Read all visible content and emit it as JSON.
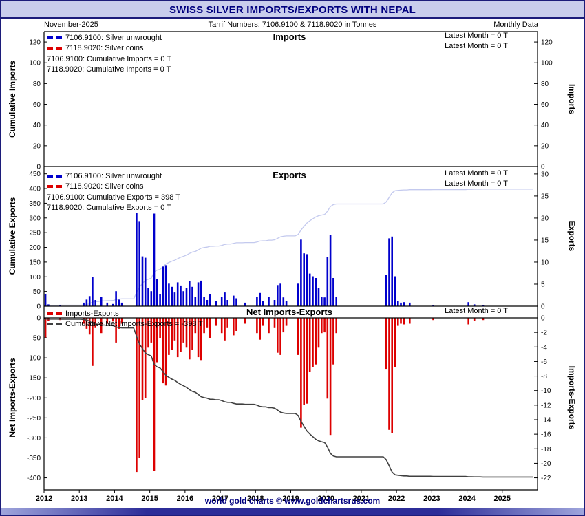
{
  "header": {
    "title": "SWISS SILVER IMPORTS/EXPORTS WITH NEPAL",
    "date_label": "November-2025",
    "tariff_label": "Tarrif Numbers: 7106.9100 & 7118.9020 in Tonnes",
    "period_label": "Monthly Data"
  },
  "footer": {
    "credit": "world gold charts © www.goldchartsrus.com"
  },
  "colors": {
    "unwrought": "#0000cc",
    "coins": "#dd0000",
    "cumulative_exports_line": "#c3c9ee",
    "cumulative_net_line": "#404040",
    "header_bg": "#c9cdec",
    "header_text": "#00007e",
    "axis": "#000000"
  },
  "x_axis": {
    "start_year": 2012,
    "end_year": 2026,
    "year_labels": [
      2012,
      2013,
      2014,
      2015,
      2016,
      2017,
      2018,
      2019,
      2020,
      2021,
      2022,
      2023,
      2024,
      2025
    ]
  },
  "chart_data": [
    {
      "id": "imports",
      "type": "bar",
      "title": "Imports",
      "units": "Tonnes",
      "left_axis": {
        "label": "Cumulative Imports",
        "ticks": [
          0,
          20,
          40,
          60,
          80,
          100,
          120
        ],
        "max": 130
      },
      "right_axis": {
        "label": "Imports",
        "ticks": [
          0,
          20,
          40,
          60,
          80,
          100,
          120
        ],
        "max": 130
      },
      "legend": [
        {
          "label": "7106.9100: Silver unwrought",
          "color": "unwrought"
        },
        {
          "label": "7118.9020: Silver coins",
          "color": "coins"
        }
      ],
      "annotations": [
        "7106.9100: Cumulative Imports = 0 T",
        "7118.9020: Cumulative Imports = 0 T"
      ],
      "latest": [
        "Latest Month = 0 T",
        "Latest Month = 0 T"
      ],
      "bar_color": "unwrought",
      "monthly": [],
      "cumulative_total": 0
    },
    {
      "id": "exports",
      "type": "bar+line",
      "title": "Exports",
      "units": "Tonnes",
      "left_axis": {
        "label": "Cumulative Exports",
        "ticks": [
          0,
          50,
          100,
          150,
          200,
          250,
          300,
          350,
          400,
          450
        ],
        "max": 475
      },
      "right_axis": {
        "label": "Exports",
        "ticks": [
          0,
          5,
          10,
          15,
          20,
          25,
          30
        ],
        "max": 31.7
      },
      "legend": [
        {
          "label": "7106.9100: Silver unwrought",
          "color": "unwrought"
        },
        {
          "label": "7118.9020: Silver coins",
          "color": "coins"
        }
      ],
      "annotations": [
        "7106.9100: Cumulative Exports = 398 T",
        "7118.9020: Cumulative Exports = 0 T"
      ],
      "latest": [
        "Latest Month = 0 T",
        "Latest Month = 0 T"
      ],
      "bar_color": "unwrought",
      "line_color": "cumulative_exports_line",
      "cumulative_total": 398,
      "monthly": [
        [
          "2012-01",
          2.7
        ],
        [
          "2012-02",
          0.4
        ],
        [
          "2012-06",
          0.3
        ],
        [
          "2013-02",
          0.8
        ],
        [
          "2013-03",
          1.5
        ],
        [
          "2013-04",
          2.3
        ],
        [
          "2013-05",
          6.6
        ],
        [
          "2013-06",
          1.4
        ],
        [
          "2013-08",
          2.1
        ],
        [
          "2013-10",
          0.8
        ],
        [
          "2013-12",
          0.5
        ],
        [
          "2014-01",
          3.4
        ],
        [
          "2014-02",
          1.5
        ],
        [
          "2014-03",
          0.8
        ],
        [
          "2014-08",
          21.2
        ],
        [
          "2014-09",
          19.3
        ],
        [
          "2014-10",
          11.3
        ],
        [
          "2014-11",
          11.0
        ],
        [
          "2014-12",
          4.1
        ],
        [
          "2015-01",
          3.4
        ],
        [
          "2015-02",
          21.0
        ],
        [
          "2015-03",
          6.1
        ],
        [
          "2015-04",
          2.8
        ],
        [
          "2015-05",
          9.0
        ],
        [
          "2015-06",
          9.3
        ],
        [
          "2015-07",
          5.1
        ],
        [
          "2015-08",
          4.4
        ],
        [
          "2015-09",
          3.1
        ],
        [
          "2015-10",
          5.4
        ],
        [
          "2015-11",
          4.7
        ],
        [
          "2015-12",
          3.4
        ],
        [
          "2016-01",
          4.1
        ],
        [
          "2016-02",
          5.7
        ],
        [
          "2016-03",
          4.4
        ],
        [
          "2016-04",
          2.1
        ],
        [
          "2016-05",
          5.4
        ],
        [
          "2016-06",
          5.8
        ],
        [
          "2016-07",
          2.1
        ],
        [
          "2016-08",
          1.4
        ],
        [
          "2016-09",
          2.8
        ],
        [
          "2016-11",
          1.1
        ],
        [
          "2017-01",
          2.1
        ],
        [
          "2017-02",
          3.1
        ],
        [
          "2017-03",
          1.4
        ],
        [
          "2017-05",
          2.4
        ],
        [
          "2017-06",
          1.8
        ],
        [
          "2017-09",
          0.8
        ],
        [
          "2018-01",
          2.1
        ],
        [
          "2018-02",
          3.0
        ],
        [
          "2018-03",
          1.1
        ],
        [
          "2018-05",
          2.1
        ],
        [
          "2018-07",
          1.4
        ],
        [
          "2018-08",
          4.8
        ],
        [
          "2018-09",
          5.1
        ],
        [
          "2018-10",
          2.0
        ],
        [
          "2018-11",
          1.1
        ],
        [
          "2019-03",
          5.1
        ],
        [
          "2019-04",
          15.1
        ],
        [
          "2019-05",
          12.0
        ],
        [
          "2019-06",
          11.8
        ],
        [
          "2019-07",
          7.4
        ],
        [
          "2019-08",
          6.8
        ],
        [
          "2019-09",
          6.4
        ],
        [
          "2019-10",
          4.1
        ],
        [
          "2019-11",
          2.1
        ],
        [
          "2019-12",
          2.0
        ],
        [
          "2020-01",
          11.1
        ],
        [
          "2020-02",
          16.1
        ],
        [
          "2020-03",
          6.4
        ],
        [
          "2020-04",
          2.1
        ],
        [
          "2021-09",
          7.1
        ],
        [
          "2021-10",
          15.4
        ],
        [
          "2021-11",
          15.8
        ],
        [
          "2021-12",
          6.8
        ],
        [
          "2022-01",
          1.1
        ],
        [
          "2022-02",
          0.8
        ],
        [
          "2022-03",
          0.9
        ],
        [
          "2022-05",
          0.8
        ],
        [
          "2023-01",
          0.3
        ],
        [
          "2024-01",
          0.9
        ],
        [
          "2024-03",
          0.4
        ],
        [
          "2024-06",
          0.3
        ]
      ]
    },
    {
      "id": "net",
      "type": "bar+line",
      "title": "Net Imports-Exports",
      "units": "Tonnes",
      "left_axis": {
        "label": "Net Imports-Exports",
        "ticks": [
          0,
          -50,
          -100,
          -150,
          -200,
          -250,
          -300,
          -350,
          -400
        ],
        "min": -430
      },
      "right_axis": {
        "label": "Imports-Exports",
        "ticks": [
          0,
          -2,
          -4,
          -6,
          -8,
          -10,
          -12,
          -14,
          -16,
          -18,
          -20,
          -22
        ],
        "min": -23.65
      },
      "legend": [
        {
          "label": "Imports-Exports",
          "color": "coins"
        },
        {
          "label": "Cumulative Net Imports-Exports = -398 T",
          "color": "cumulative_net_line"
        }
      ],
      "latest": [
        "Latest Month = 0 T"
      ],
      "bar_color": "coins",
      "line_color": "cumulative_net_line",
      "cumulative_total": -398,
      "monthly": [
        [
          "2012-01",
          -2.7
        ],
        [
          "2012-02",
          -0.4
        ],
        [
          "2012-06",
          -0.3
        ],
        [
          "2013-02",
          -0.8
        ],
        [
          "2013-03",
          -1.5
        ],
        [
          "2013-04",
          -2.3
        ],
        [
          "2013-05",
          -6.6
        ],
        [
          "2013-06",
          -1.4
        ],
        [
          "2013-08",
          -2.1
        ],
        [
          "2013-10",
          -0.8
        ],
        [
          "2013-12",
          -0.5
        ],
        [
          "2014-01",
          -3.4
        ],
        [
          "2014-02",
          -1.5
        ],
        [
          "2014-03",
          -0.8
        ],
        [
          "2014-08",
          -21.2
        ],
        [
          "2014-09",
          -19.3
        ],
        [
          "2014-10",
          -11.3
        ],
        [
          "2014-11",
          -11.0
        ],
        [
          "2014-12",
          -4.1
        ],
        [
          "2015-01",
          -3.4
        ],
        [
          "2015-02",
          -21.0
        ],
        [
          "2015-03",
          -6.1
        ],
        [
          "2015-04",
          -2.8
        ],
        [
          "2015-05",
          -9.0
        ],
        [
          "2015-06",
          -9.3
        ],
        [
          "2015-07",
          -5.1
        ],
        [
          "2015-08",
          -4.4
        ],
        [
          "2015-09",
          -3.1
        ],
        [
          "2015-10",
          -5.4
        ],
        [
          "2015-11",
          -4.7
        ],
        [
          "2015-12",
          -3.4
        ],
        [
          "2016-01",
          -4.1
        ],
        [
          "2016-02",
          -5.7
        ],
        [
          "2016-03",
          -4.4
        ],
        [
          "2016-04",
          -2.1
        ],
        [
          "2016-05",
          -5.4
        ],
        [
          "2016-06",
          -5.8
        ],
        [
          "2016-07",
          -2.1
        ],
        [
          "2016-08",
          -1.4
        ],
        [
          "2016-09",
          -2.8
        ],
        [
          "2016-11",
          -1.1
        ],
        [
          "2017-01",
          -2.1
        ],
        [
          "2017-02",
          -3.1
        ],
        [
          "2017-03",
          -1.4
        ],
        [
          "2017-05",
          -2.4
        ],
        [
          "2017-06",
          -1.8
        ],
        [
          "2017-09",
          -0.8
        ],
        [
          "2018-01",
          -2.1
        ],
        [
          "2018-02",
          -3.0
        ],
        [
          "2018-03",
          -1.1
        ],
        [
          "2018-05",
          -2.1
        ],
        [
          "2018-07",
          -1.4
        ],
        [
          "2018-08",
          -4.8
        ],
        [
          "2018-09",
          -5.1
        ],
        [
          "2018-10",
          -2.0
        ],
        [
          "2018-11",
          -1.1
        ],
        [
          "2019-03",
          -5.1
        ],
        [
          "2019-04",
          -15.1
        ],
        [
          "2019-05",
          -12.0
        ],
        [
          "2019-06",
          -11.8
        ],
        [
          "2019-07",
          -7.4
        ],
        [
          "2019-08",
          -6.8
        ],
        [
          "2019-09",
          -6.4
        ],
        [
          "2019-10",
          -4.1
        ],
        [
          "2019-11",
          -2.1
        ],
        [
          "2019-12",
          -2.0
        ],
        [
          "2020-01",
          -11.1
        ],
        [
          "2020-02",
          -16.1
        ],
        [
          "2020-03",
          -6.4
        ],
        [
          "2020-04",
          -2.1
        ],
        [
          "2021-09",
          -7.1
        ],
        [
          "2021-10",
          -15.4
        ],
        [
          "2021-11",
          -15.8
        ],
        [
          "2021-12",
          -6.8
        ],
        [
          "2022-01",
          -1.1
        ],
        [
          "2022-02",
          -0.8
        ],
        [
          "2022-03",
          -0.9
        ],
        [
          "2022-05",
          -0.8
        ],
        [
          "2023-01",
          -0.3
        ],
        [
          "2024-01",
          -0.9
        ],
        [
          "2024-03",
          -0.4
        ],
        [
          "2024-06",
          -0.3
        ]
      ]
    }
  ]
}
